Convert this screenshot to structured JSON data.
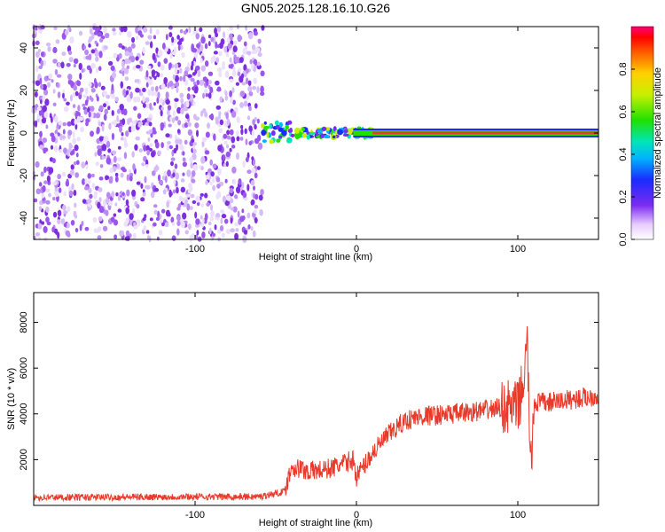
{
  "title": "GN05.2025.128.16.10.G26",
  "chart_data": [
    {
      "type": "heatmap",
      "xlabel": "Height of straight line (km)",
      "ylabel": "Frequency (Hz)",
      "xlim": [
        -200,
        150
      ],
      "ylim": [
        -50,
        50
      ],
      "x_ticks": [
        -100,
        0,
        100
      ],
      "y_ticks": [
        -40,
        -20,
        0,
        20,
        40
      ],
      "grid": false,
      "colorbar": {
        "label": "Normalized spectral amplitude",
        "range": [
          0.0,
          1.0
        ],
        "ticks": [
          0.0,
          0.2,
          0.4,
          0.6,
          0.8
        ],
        "colormap": "rainbow"
      },
      "regions": [
        {
          "x_range": [
            -200,
            -58
          ],
          "description": "noise",
          "amplitude_range": [
            0.0,
            0.2
          ]
        },
        {
          "x_range": [
            -58,
            10
          ],
          "description": "scattered signal",
          "amplitude_range": [
            0.2,
            0.8
          ]
        },
        {
          "x_range": [
            10,
            150
          ],
          "description": "strong tone at 0 Hz",
          "amplitude_range": [
            0.8,
            1.0
          ]
        }
      ],
      "colors": {
        "noise": "#7d2ee0",
        "peak": "#e8392a"
      }
    },
    {
      "type": "line",
      "xlabel": "Height of straight line (km)",
      "ylabel": "SNR (10 * v/v)",
      "xlim": [
        -200,
        150
      ],
      "ylim": [
        0,
        9300
      ],
      "x_ticks": [
        -100,
        0,
        100
      ],
      "y_ticks": [
        2000,
        4000,
        6000,
        8000
      ],
      "grid": false,
      "color": "#e8392a",
      "x": [
        -200,
        -150,
        -100,
        -60,
        -45,
        -40,
        -30,
        -20,
        -10,
        -2,
        0,
        10,
        20,
        30,
        40,
        60,
        80,
        90,
        95,
        100,
        103,
        106,
        108,
        110,
        120,
        130,
        150
      ],
      "y": [
        350,
        360,
        380,
        380,
        600,
        1700,
        1500,
        1550,
        1750,
        2000,
        1250,
        2300,
        3100,
        3700,
        3900,
        4000,
        4150,
        4300,
        4300,
        4250,
        5200,
        7000,
        1300,
        4500,
        4500,
        4600,
        4800
      ]
    }
  ]
}
